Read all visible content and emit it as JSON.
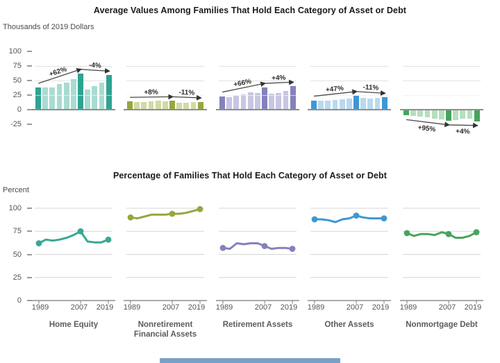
{
  "top_section": {
    "title": "Average Values Among Families That Hold Each Category of Asset or Debt",
    "unit_label": "Thousands of 2019 Dollars",
    "y_ticks": [
      100,
      75,
      50,
      25,
      0,
      -25
    ]
  },
  "bottom_section": {
    "title": "Percentage of Families That Hold Each Category of Asset or Debt",
    "unit_label": "Percent",
    "y_ticks": [
      100,
      75,
      50,
      25,
      0
    ],
    "x_tick_labels": [
      "1989",
      "2007",
      "2019"
    ]
  },
  "chart_data": [
    {
      "type": "bar",
      "title": "Average Values Among Families That Hold Each Category of Asset or Debt",
      "ylabel": "Thousands of 2019 Dollars",
      "ylim": [
        -25,
        100
      ],
      "years": [
        1989,
        1992,
        1995,
        1998,
        2001,
        2004,
        2007,
        2010,
        2013,
        2016,
        2019
      ],
      "highlight_years": [
        1989,
        2007,
        2019
      ],
      "grid": true,
      "panels": [
        {
          "name": "Home Equity",
          "color_dark": "#2ea392",
          "color_light": "#a9dbd1",
          "values": [
            38,
            38,
            38,
            44,
            47,
            52,
            62,
            35,
            40,
            47,
            59
          ],
          "annotations": [
            {
              "label": "+62%",
              "from": 0,
              "to": 6,
              "side": "above"
            },
            {
              "label": "-4%",
              "from": 6,
              "to": 10,
              "side": "above"
            }
          ]
        },
        {
          "name": "Nonretirement Financial Assets",
          "color_dark": "#93a83d",
          "color_light": "#d1daa5",
          "values": [
            14,
            13,
            13,
            14,
            15,
            14,
            15,
            12,
            12,
            13,
            13
          ],
          "annotations": [
            {
              "label": "+8%",
              "from": 0,
              "to": 6,
              "side": "above"
            },
            {
              "label": "-11%",
              "from": 6,
              "to": 10,
              "side": "above"
            }
          ]
        },
        {
          "name": "Retirement Assets",
          "color_dark": "#8481bd",
          "color_light": "#c7c6e3",
          "values": [
            23,
            21,
            24,
            26,
            30,
            28,
            38,
            27,
            29,
            32,
            40
          ],
          "annotations": [
            {
              "label": "+66%",
              "from": 0,
              "to": 6,
              "side": "above"
            },
            {
              "label": "+4%",
              "from": 6,
              "to": 10,
              "side": "above"
            }
          ]
        },
        {
          "name": "Other Assets",
          "color_dark": "#3e97d3",
          "color_light": "#b9d9ee",
          "values": [
            16,
            15,
            16,
            17,
            18,
            19,
            24,
            20,
            19,
            20,
            21
          ],
          "annotations": [
            {
              "label": "+47%",
              "from": 0,
              "to": 6,
              "side": "above"
            },
            {
              "label": "-11%",
              "from": 6,
              "to": 10,
              "side": "above"
            }
          ]
        },
        {
          "name": "Nonmortgage Debt",
          "color_dark": "#47a45c",
          "color_light": "#b6debf",
          "values": [
            -10,
            -11,
            -12,
            -13,
            -15,
            -17,
            -19,
            -18,
            -16,
            -15,
            -20
          ],
          "annotations": [
            {
              "label": "+95%",
              "from": 0,
              "to": 6,
              "side": "below"
            },
            {
              "label": "+4%",
              "from": 6,
              "to": 10,
              "side": "below"
            }
          ]
        }
      ]
    },
    {
      "type": "line",
      "title": "Percentage of Families That Hold Each Category of Asset or Debt",
      "ylabel": "Percent",
      "ylim": [
        0,
        100
      ],
      "x": [
        1989,
        1992,
        1995,
        1998,
        2001,
        2004,
        2007,
        2010,
        2013,
        2016,
        2019
      ],
      "x_tick_labels": [
        "1989",
        "2007",
        "2019"
      ],
      "marker_years": [
        1989,
        2007,
        2019
      ],
      "grid": true,
      "panels": [
        {
          "name": "Home Equity",
          "color": "#3aa793",
          "values": [
            62,
            66,
            65,
            66,
            68,
            71,
            75,
            64,
            63,
            63,
            66
          ]
        },
        {
          "name": "Nonretirement Financial Assets",
          "color": "#93a83d",
          "values": [
            90,
            89,
            91,
            93,
            93,
            93,
            94,
            94,
            95,
            97,
            99
          ]
        },
        {
          "name": "Retirement Assets",
          "color": "#8481bd",
          "values": [
            57,
            56,
            62,
            61,
            62,
            62,
            59,
            56,
            57,
            57,
            56
          ]
        },
        {
          "name": "Other Assets",
          "color": "#3e97d3",
          "values": [
            88,
            88,
            87,
            85,
            88,
            89,
            92,
            90,
            89,
            89,
            89
          ]
        },
        {
          "name": "Nonmortgage Debt",
          "color": "#47a45c",
          "values": [
            73,
            70,
            72,
            72,
            71,
            74,
            72,
            68,
            68,
            70,
            74
          ]
        }
      ]
    }
  ],
  "footer": {
    "partial_bar_color": "#7ba0c6"
  }
}
